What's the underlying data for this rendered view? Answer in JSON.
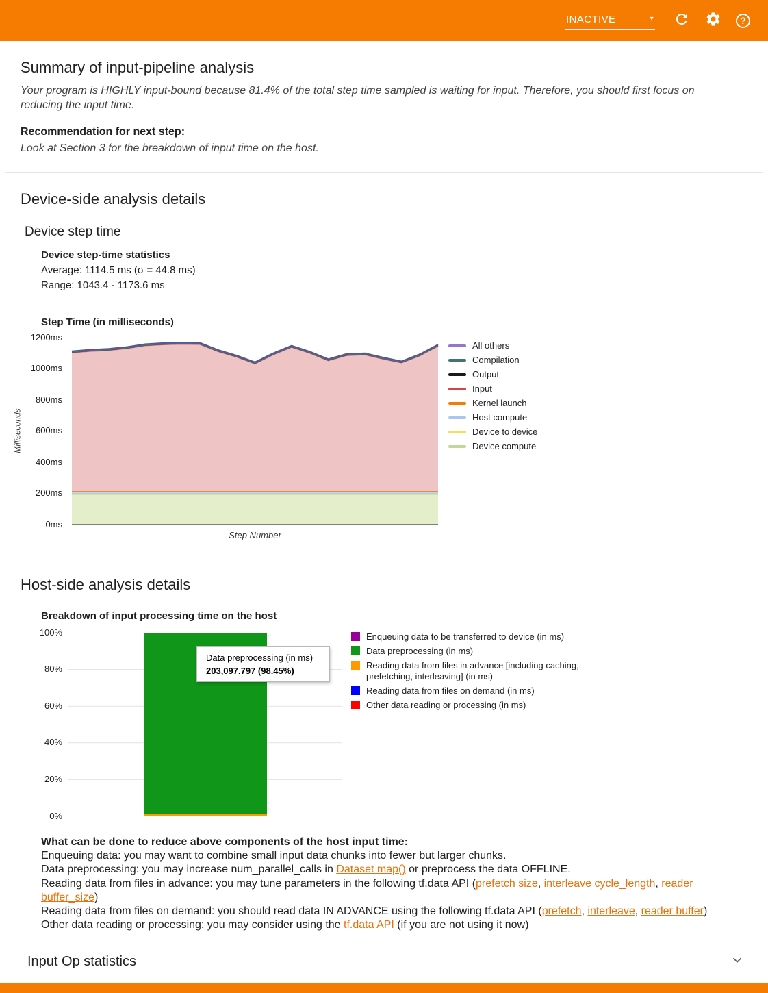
{
  "topbar": {
    "status_value": "INACTIVE"
  },
  "summary": {
    "title": "Summary of input-pipeline analysis",
    "conclusion": "Your program is HIGHLY input-bound because 81.4% of the total step time sampled is waiting for input. Therefore, you should first focus on reducing the input time.",
    "recommendation_label": "Recommendation for next step:",
    "recommendation": "Look at Section 3 for the breakdown of input time on the host."
  },
  "device_section": {
    "title": "Device-side analysis details",
    "subtitle": "Device step time",
    "stats_heading": "Device step-time statistics",
    "stats_average": "Average: 1114.5 ms (σ = 44.8 ms)",
    "stats_range": "Range: 1043.4 - 1173.6 ms"
  },
  "host_section": {
    "title": "Host-side analysis details",
    "tooltip": {
      "title": "Data preprocessing (in ms)",
      "value": "203,097.797 (98.45%)"
    },
    "tips_heading": "What can be done to reduce above components of the host input time:",
    "tips": [
      [
        {
          "t": "Enqueuing data: you may want to combine small input data chunks into fewer but larger chunks."
        }
      ],
      [
        {
          "t": "Data preprocessing: you may increase num_parallel_calls in "
        },
        {
          "t": "Dataset map()",
          "link": true
        },
        {
          "t": " or preprocess the data OFFLINE."
        }
      ],
      [
        {
          "t": "Reading data from files in advance: you may tune parameters in the following tf.data API ("
        },
        {
          "t": "prefetch size",
          "link": true
        },
        {
          "t": ", "
        },
        {
          "t": "interleave cycle_length",
          "link": true
        },
        {
          "t": ", "
        },
        {
          "t": "reader buffer_size",
          "link": true
        },
        {
          "t": ")"
        }
      ],
      [
        {
          "t": "Reading data from files on demand: you should read data IN ADVANCE using the following tf.data API ("
        },
        {
          "t": "prefetch",
          "link": true
        },
        {
          "t": ", "
        },
        {
          "t": "interleave",
          "link": true
        },
        {
          "t": ", "
        },
        {
          "t": "reader buffer",
          "link": true
        },
        {
          "t": ")"
        }
      ],
      [
        {
          "t": "Other data reading or processing: you may consider using the "
        },
        {
          "t": "tf.data API",
          "link": true
        },
        {
          "t": " (if you are not using it now)"
        }
      ]
    ]
  },
  "input_op_section": {
    "title": "Input Op statistics"
  },
  "chart_data": [
    {
      "type": "area",
      "title": "Step Time (in milliseconds)",
      "xlabel": "Step Number",
      "ylabel": "Milliseconds",
      "ylim": [
        0,
        1200
      ],
      "yticks": [
        "0ms",
        "200ms",
        "400ms",
        "600ms",
        "800ms",
        "1000ms",
        "1200ms"
      ],
      "grid": false,
      "legend_position": "right",
      "x": [
        0,
        1,
        2,
        3,
        4,
        5,
        6,
        7,
        8,
        9,
        10,
        11,
        12,
        13,
        14,
        15,
        16,
        17,
        18,
        19,
        20
      ],
      "series": [
        {
          "name": "Device compute",
          "value": 195,
          "line": "#b5cf6b",
          "fill": "rgba(205,224,159,0.55)"
        },
        {
          "name": "Device to device",
          "value": 4,
          "line": "#f1e05a"
        },
        {
          "name": "Host compute",
          "value": 3,
          "line": "#a8c7f0"
        },
        {
          "name": "Kernel launch",
          "value": 9,
          "line": "#f0941f",
          "width": 2
        },
        {
          "name": "Input",
          "values": [
            892,
            901,
            907,
            919,
            937,
            944,
            947,
            945,
            899,
            864,
            821,
            879,
            927,
            889,
            841,
            874,
            879,
            851,
            827,
            872,
            934
          ],
          "line": "#d9777a",
          "fill": "rgba(220,125,125,0.45)"
        },
        {
          "name": "Output",
          "value": 3,
          "line": "#3c3c3c"
        },
        {
          "name": "Compilation",
          "value": 2,
          "line": "#4f7f71"
        },
        {
          "name": "All others",
          "value": 5,
          "line": "#55559a",
          "width": 2.2
        }
      ],
      "legend": [
        {
          "label": "All others",
          "color": "#9575cd"
        },
        {
          "label": "Compilation",
          "color": "#44756a"
        },
        {
          "label": "Output",
          "color": "#1a1a1a"
        },
        {
          "label": "Input",
          "color": "#d64541"
        },
        {
          "label": "Kernel launch",
          "color": "#f57c00"
        },
        {
          "label": "Host compute",
          "color": "#a8c7f0"
        },
        {
          "label": "Device to device",
          "color": "#f1e05a"
        },
        {
          "label": "Device compute",
          "color": "#c3d69b"
        }
      ]
    },
    {
      "type": "bar",
      "title": "Breakdown of input processing time on the host",
      "ylim": [
        0,
        100
      ],
      "yticks": [
        "0%",
        "20%",
        "40%",
        "60%",
        "80%",
        "100%"
      ],
      "grid": true,
      "legend_position": "right",
      "stack_order": [
        4,
        3,
        2,
        1,
        0
      ],
      "series": [
        {
          "name": "Enqueuing data to be transferred to device (in ms)",
          "color": "#990099",
          "value": 0.2
        },
        {
          "name": "Data preprocessing (in ms)",
          "color": "#109618",
          "value": 98.45
        },
        {
          "name": "Reading data from files in advance [including caching, prefetching, interleaving] (in ms)",
          "color": "#ff9900",
          "value": 1.05
        },
        {
          "name": "Reading data from files on demand (in ms)",
          "color": "#0000ff",
          "value": 0.2
        },
        {
          "name": "Other data reading or processing (in ms)",
          "color": "#ff0000",
          "value": 0.1
        }
      ]
    }
  ]
}
